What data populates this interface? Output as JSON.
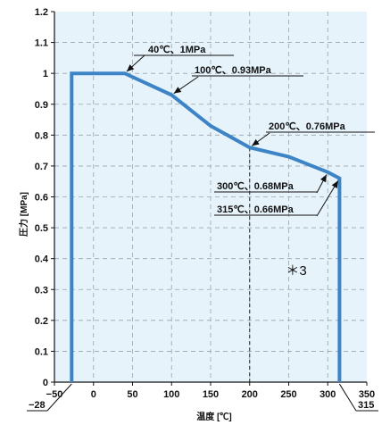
{
  "chart_data": {
    "type": "line",
    "xlabel": "温度 [℃]",
    "ylabel": "圧力 [MPa]",
    "xlim": [
      -50,
      350
    ],
    "ylim": [
      0,
      1.2
    ],
    "x_ticks": [
      "−50",
      "0",
      "50",
      "100",
      "150",
      "200",
      "250",
      "300",
      "350"
    ],
    "x_ticks_values": [
      -50,
      0,
      50,
      100,
      150,
      200,
      250,
      300,
      350
    ],
    "y_ticks": [
      "0",
      "0.1",
      "0.2",
      "0.3",
      "0.4",
      "0.5",
      "0.6",
      "0.7",
      "0.8",
      "0.9",
      "1",
      "1.1",
      "1.2"
    ],
    "extra_x_labels": [
      {
        "value": -28,
        "text": "−28"
      },
      {
        "value": 315,
        "text": "315"
      }
    ],
    "grid": true,
    "series": [
      {
        "color": "#3c84c6",
        "x": [
          -28,
          -28,
          40,
          100,
          150,
          200,
          250,
          300,
          315,
          315
        ],
        "y": [
          0,
          1,
          1,
          0.93,
          0.83,
          0.76,
          0.73,
          0.68,
          0.66,
          0
        ]
      }
    ],
    "annotations": [
      {
        "text": "40℃、1MPa",
        "x": 40,
        "y": 1
      },
      {
        "text": "100℃、0.93MPa",
        "x": 100,
        "y": 0.93
      },
      {
        "text": "200℃、0.76MPa",
        "x": 200,
        "y": 0.76
      },
      {
        "text": "300℃、0.68MPa",
        "x": 300,
        "y": 0.68
      },
      {
        "text": "315℃、0.66MPa",
        "x": 315,
        "y": 0.66
      }
    ],
    "note_mark": "＊3",
    "vline_x": 200
  }
}
